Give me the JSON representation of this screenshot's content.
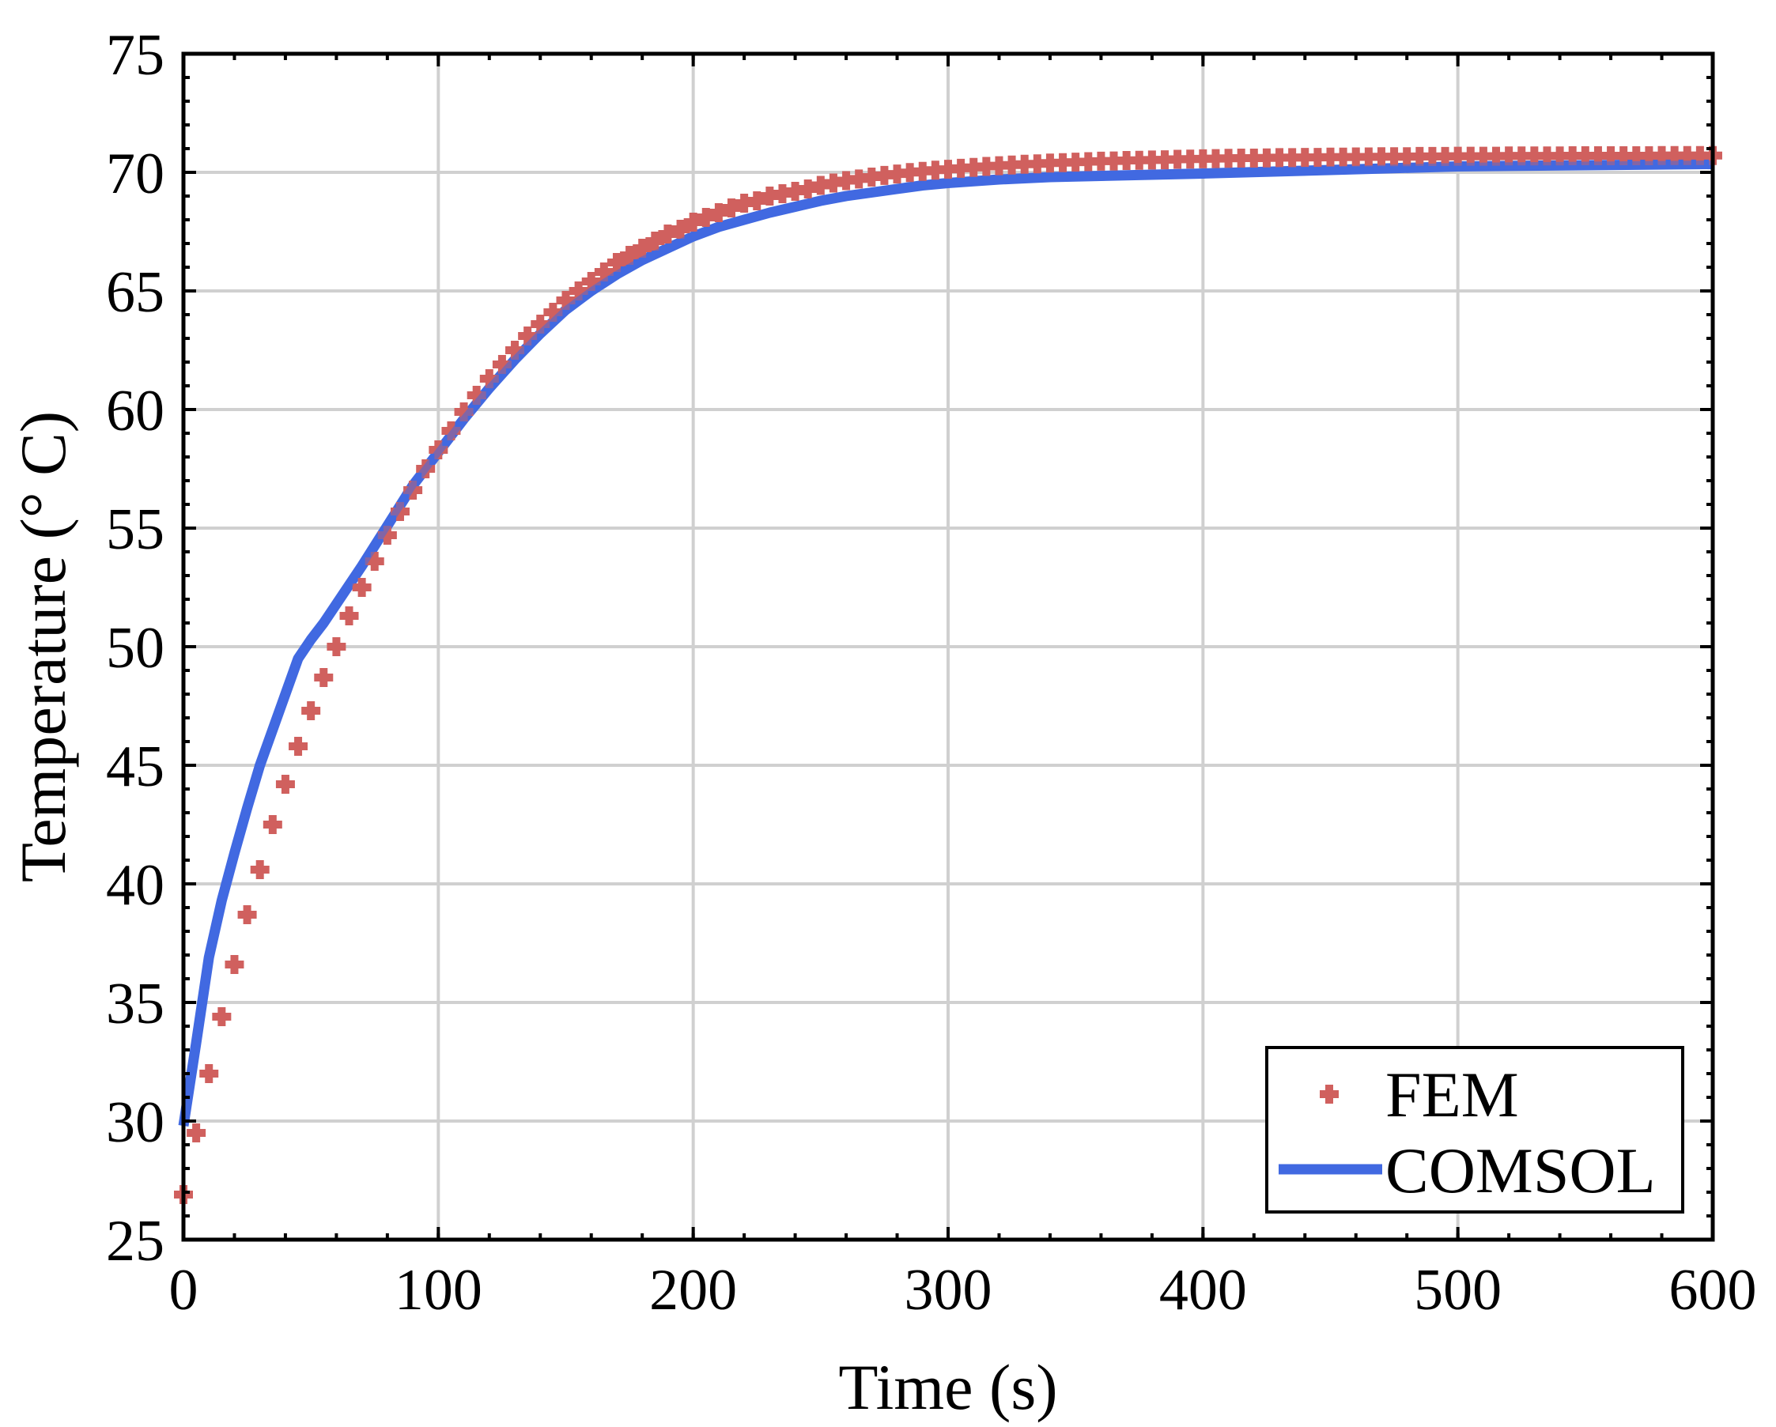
{
  "chart_data": {
    "type": "line",
    "xlabel": "Time (s)",
    "ylabel": "Temperature (° C)",
    "xlim": [
      0,
      600
    ],
    "ylim": [
      25,
      75
    ],
    "xticks": [
      0,
      100,
      200,
      300,
      400,
      500,
      600
    ],
    "yticks": [
      25,
      30,
      35,
      40,
      45,
      50,
      55,
      60,
      65,
      70,
      75
    ],
    "grid": true,
    "legend_position": "bottom-right",
    "series": [
      {
        "name": "FEM",
        "style": "markers",
        "marker": "plus",
        "color": "#d0605e",
        "x": [
          0,
          5,
          10,
          15,
          20,
          25,
          30,
          35,
          40,
          45,
          50,
          55,
          60,
          65,
          70,
          75,
          80,
          85,
          90,
          95,
          100,
          105,
          110,
          115,
          120,
          125,
          130,
          135,
          140,
          145,
          150,
          155,
          160,
          165,
          170,
          175,
          180,
          185,
          190,
          195,
          200,
          205,
          210,
          215,
          220,
          225,
          230,
          235,
          240,
          245,
          250,
          255,
          260,
          265,
          270,
          275,
          280,
          285,
          290,
          295,
          300,
          305,
          310,
          315,
          320,
          325,
          330,
          335,
          340,
          345,
          350,
          355,
          360,
          365,
          370,
          375,
          380,
          385,
          390,
          395,
          400,
          405,
          410,
          415,
          420,
          425,
          430,
          435,
          440,
          445,
          450,
          455,
          460,
          465,
          470,
          475,
          480,
          485,
          490,
          495,
          500,
          505,
          510,
          515,
          520,
          525,
          530,
          535,
          540,
          545,
          550,
          555,
          560,
          565,
          570,
          575,
          580,
          585,
          590,
          595,
          600
        ],
        "y": [
          26.9,
          29.5,
          32.0,
          34.4,
          36.6,
          38.7,
          40.6,
          42.5,
          44.2,
          45.8,
          47.3,
          48.7,
          50.0,
          51.3,
          52.5,
          53.6,
          54.7,
          55.7,
          56.6,
          57.5,
          58.3,
          59.1,
          59.9,
          60.6,
          61.3,
          61.9,
          62.5,
          63.1,
          63.6,
          64.1,
          64.6,
          65.0,
          65.4,
          65.8,
          66.2,
          66.5,
          66.8,
          67.1,
          67.4,
          67.6,
          67.9,
          68.1,
          68.3,
          68.5,
          68.7,
          68.8,
          69.0,
          69.1,
          69.2,
          69.3,
          69.45,
          69.55,
          69.65,
          69.72,
          69.8,
          69.87,
          69.93,
          69.99,
          70.04,
          70.09,
          70.13,
          70.17,
          70.21,
          70.25,
          70.28,
          70.31,
          70.34,
          70.36,
          70.39,
          70.41,
          70.43,
          70.45,
          70.47,
          70.48,
          70.5,
          70.51,
          70.52,
          70.53,
          70.55,
          70.56,
          70.57,
          70.58,
          70.59,
          70.6,
          70.6,
          70.61,
          70.62,
          70.62,
          70.63,
          70.63,
          70.64,
          70.64,
          70.65,
          70.65,
          70.66,
          70.66,
          70.66,
          70.67,
          70.67,
          70.67,
          70.68,
          70.68,
          70.68,
          70.68,
          70.69,
          70.69,
          70.69,
          70.69,
          70.69,
          70.7,
          70.7,
          70.7,
          70.7,
          70.7,
          70.7,
          70.7,
          70.71,
          70.71,
          70.71,
          70.71,
          70.71
        ]
      },
      {
        "name": "COMSOL",
        "style": "line",
        "color": "#4169e1",
        "x": [
          0,
          5,
          10,
          15,
          20,
          25,
          30,
          35,
          40,
          45,
          50,
          55,
          60,
          70,
          80,
          90,
          100,
          110,
          120,
          130,
          140,
          150,
          160,
          170,
          180,
          190,
          200,
          210,
          220,
          230,
          240,
          250,
          260,
          270,
          280,
          290,
          300,
          320,
          340,
          360,
          380,
          400,
          450,
          500,
          550,
          600
        ],
        "y": [
          29.8,
          33.3,
          36.9,
          39.3,
          41.3,
          43.2,
          45.0,
          46.5,
          48.0,
          49.5,
          50.3,
          51.0,
          51.8,
          53.4,
          55.1,
          56.8,
          58.2,
          59.6,
          60.9,
          62.1,
          63.2,
          64.2,
          65.0,
          65.7,
          66.3,
          66.8,
          67.3,
          67.7,
          68.0,
          68.3,
          68.55,
          68.8,
          69.0,
          69.15,
          69.3,
          69.45,
          69.55,
          69.7,
          69.8,
          69.85,
          69.9,
          69.95,
          70.1,
          70.25,
          70.3,
          70.35
        ]
      }
    ]
  }
}
